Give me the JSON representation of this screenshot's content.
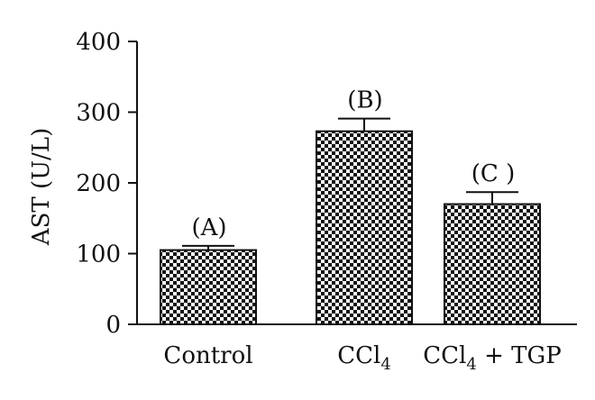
{
  "chart_data": {
    "type": "bar",
    "title": "",
    "xlabel": "",
    "ylabel": "AST (U/L)",
    "ylim": [
      0,
      400
    ],
    "yticks": [
      0,
      100,
      200,
      300,
      400
    ],
    "grid": false,
    "legend": "none",
    "bar_pattern": "checkerboard",
    "bar_color": "#111111",
    "categories": [
      {
        "text": "Control",
        "sub": "",
        "suffix": ""
      },
      {
        "text": "CCl",
        "sub": "4",
        "suffix": ""
      },
      {
        "text": "CCl",
        "sub": "4",
        "suffix": " + TGP"
      }
    ],
    "values": [
      105,
      273,
      170
    ],
    "errors": [
      6,
      18,
      17
    ],
    "annotations": [
      "(A)",
      "(B)",
      "(C )"
    ]
  }
}
